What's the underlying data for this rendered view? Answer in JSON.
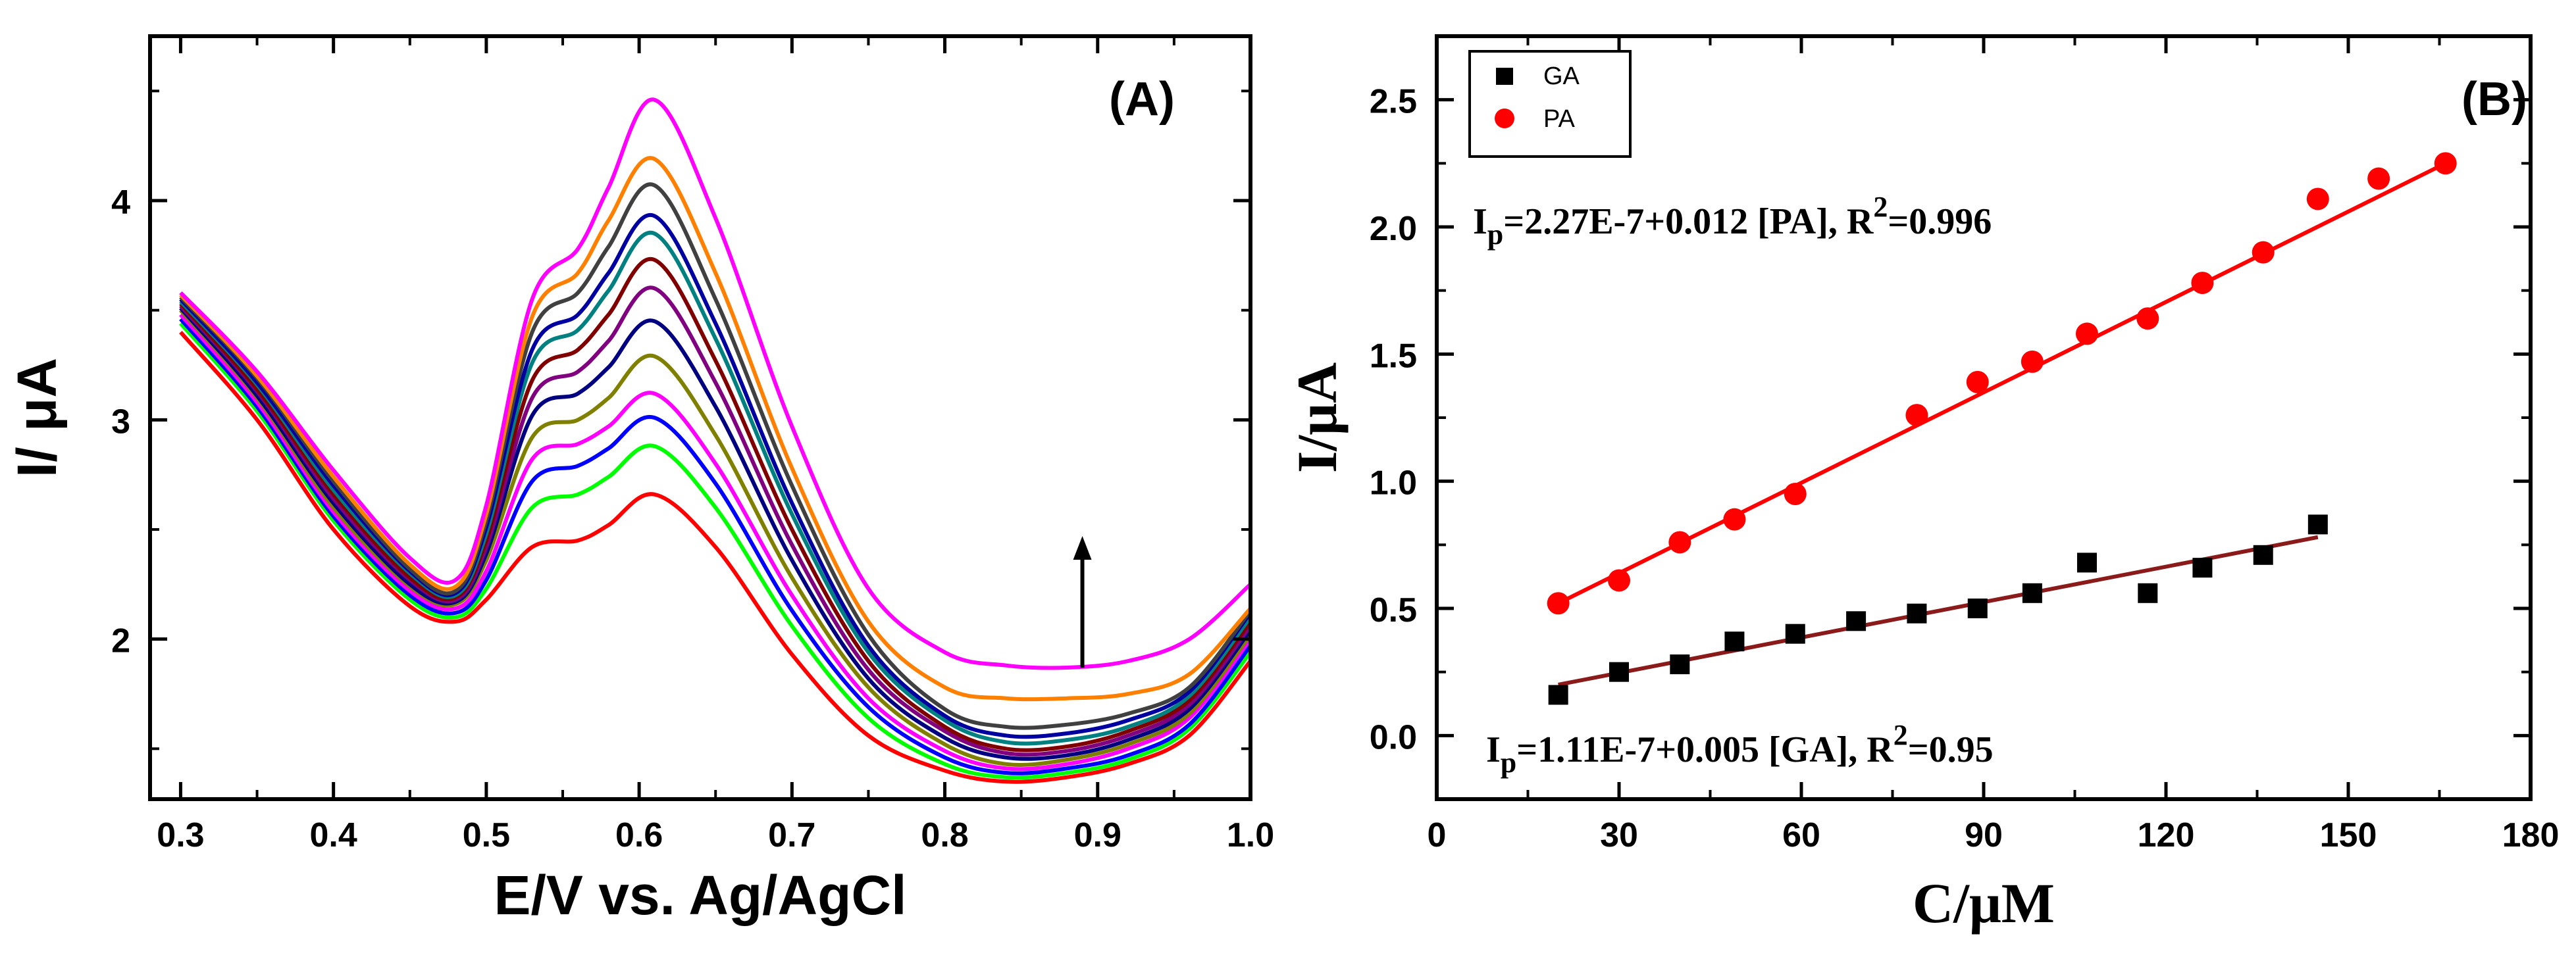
{
  "chart_data": [
    {
      "panel": "A",
      "type": "line",
      "panel_label": "(A)",
      "xlabel": "E/V vs. Ag/AgCl",
      "ylabel": "I/ μA",
      "xlim": [
        0.28,
        1.0
      ],
      "ylim": [
        1.27,
        4.75
      ],
      "xticks": [
        0.3,
        0.4,
        0.5,
        0.6,
        0.7,
        0.8,
        0.9,
        1.0
      ],
      "xtick_labels": [
        "0.3",
        "0.4",
        "0.5",
        "0.6",
        "0.7",
        "0.8",
        "0.9",
        "1.0"
      ],
      "yticks": [
        2,
        3,
        4
      ],
      "ytick_labels": [
        "2",
        "3",
        "4"
      ],
      "annotation": "upward arrow at E ≈ 0.89 V from 1.87 to 2.47 μA indicating increasing concentration",
      "series": [
        {
          "color": "#ff0000",
          "x": [
            0.3,
            0.35,
            0.4,
            0.45,
            0.48,
            0.5,
            0.53,
            0.56,
            0.58,
            0.61,
            0.65,
            0.7,
            0.75,
            0.8,
            0.84,
            0.88,
            0.92,
            0.96,
            1.0
          ],
          "y": [
            3.4,
            3.0,
            2.5,
            2.15,
            2.08,
            2.18,
            2.42,
            2.45,
            2.52,
            2.66,
            2.42,
            1.93,
            1.56,
            1.4,
            1.35,
            1.37,
            1.43,
            1.56,
            1.9
          ]
        },
        {
          "color": "#00ff00",
          "x": [
            0.3,
            0.35,
            0.4,
            0.45,
            0.48,
            0.5,
            0.53,
            0.56,
            0.58,
            0.61,
            0.65,
            0.7,
            0.75,
            0.8,
            0.84,
            0.88,
            0.92,
            0.96,
            1.0
          ],
          "y": [
            3.44,
            3.04,
            2.54,
            2.18,
            2.1,
            2.23,
            2.6,
            2.66,
            2.74,
            2.88,
            2.6,
            2.06,
            1.64,
            1.43,
            1.37,
            1.39,
            1.45,
            1.59,
            1.94
          ]
        },
        {
          "color": "#0000ff",
          "x": [
            0.3,
            0.35,
            0.4,
            0.45,
            0.48,
            0.5,
            0.53,
            0.56,
            0.58,
            0.61,
            0.65,
            0.7,
            0.75,
            0.8,
            0.84,
            0.88,
            0.92,
            0.96,
            1.0
          ],
          "y": [
            3.46,
            3.06,
            2.56,
            2.2,
            2.12,
            2.27,
            2.72,
            2.79,
            2.87,
            3.01,
            2.71,
            2.13,
            1.69,
            1.46,
            1.39,
            1.41,
            1.47,
            1.61,
            1.97
          ]
        },
        {
          "color": "#ff00ff",
          "x": [
            0.3,
            0.35,
            0.4,
            0.45,
            0.48,
            0.5,
            0.53,
            0.56,
            0.58,
            0.61,
            0.65,
            0.7,
            0.75,
            0.8,
            0.84,
            0.88,
            0.92,
            0.96,
            1.0
          ],
          "y": [
            3.48,
            3.08,
            2.58,
            2.22,
            2.14,
            2.31,
            2.82,
            2.89,
            2.97,
            3.12,
            2.8,
            2.2,
            1.73,
            1.49,
            1.41,
            1.43,
            1.5,
            1.64,
            2.0
          ]
        },
        {
          "color": "#808000",
          "x": [
            0.3,
            0.35,
            0.4,
            0.45,
            0.48,
            0.5,
            0.53,
            0.56,
            0.58,
            0.61,
            0.65,
            0.7,
            0.75,
            0.8,
            0.84,
            0.88,
            0.92,
            0.96,
            1.0
          ],
          "y": [
            3.5,
            3.1,
            2.6,
            2.24,
            2.16,
            2.36,
            2.92,
            3.0,
            3.1,
            3.29,
            2.93,
            2.28,
            1.78,
            1.52,
            1.43,
            1.45,
            1.52,
            1.66,
            2.02
          ]
        },
        {
          "color": "#000080",
          "x": [
            0.3,
            0.35,
            0.4,
            0.45,
            0.48,
            0.5,
            0.53,
            0.56,
            0.58,
            0.61,
            0.65,
            0.7,
            0.75,
            0.8,
            0.84,
            0.88,
            0.92,
            0.96,
            1.0
          ],
          "y": [
            3.51,
            3.11,
            2.62,
            2.25,
            2.17,
            2.39,
            3.02,
            3.12,
            3.24,
            3.45,
            3.06,
            2.36,
            1.82,
            1.55,
            1.46,
            1.47,
            1.54,
            1.68,
            2.04
          ]
        },
        {
          "color": "#800080",
          "x": [
            0.3,
            0.35,
            0.4,
            0.45,
            0.48,
            0.5,
            0.53,
            0.56,
            0.58,
            0.61,
            0.65,
            0.7,
            0.75,
            0.8,
            0.84,
            0.88,
            0.92,
            0.96,
            1.0
          ],
          "y": [
            3.52,
            3.13,
            2.64,
            2.27,
            2.18,
            2.42,
            3.1,
            3.22,
            3.36,
            3.6,
            3.17,
            2.43,
            1.86,
            1.58,
            1.48,
            1.49,
            1.56,
            1.7,
            2.06
          ]
        },
        {
          "color": "#800000",
          "x": [
            0.3,
            0.35,
            0.4,
            0.45,
            0.48,
            0.5,
            0.53,
            0.56,
            0.58,
            0.61,
            0.65,
            0.7,
            0.75,
            0.8,
            0.84,
            0.88,
            0.92,
            0.96,
            1.0
          ],
          "y": [
            3.53,
            3.14,
            2.66,
            2.28,
            2.19,
            2.45,
            3.18,
            3.32,
            3.48,
            3.73,
            3.27,
            2.5,
            1.9,
            1.6,
            1.5,
            1.51,
            1.58,
            1.72,
            2.08
          ]
        },
        {
          "color": "#008080",
          "x": [
            0.3,
            0.35,
            0.4,
            0.45,
            0.48,
            0.5,
            0.53,
            0.56,
            0.58,
            0.61,
            0.65,
            0.7,
            0.75,
            0.8,
            0.84,
            0.88,
            0.92,
            0.96,
            1.0
          ],
          "y": [
            3.54,
            3.16,
            2.68,
            2.3,
            2.2,
            2.48,
            3.26,
            3.41,
            3.59,
            3.85,
            3.37,
            2.57,
            1.94,
            1.63,
            1.53,
            1.54,
            1.6,
            1.74,
            2.1
          ]
        },
        {
          "color": "#0000a0",
          "x": [
            0.3,
            0.35,
            0.4,
            0.45,
            0.48,
            0.5,
            0.53,
            0.56,
            0.58,
            0.61,
            0.65,
            0.7,
            0.75,
            0.8,
            0.84,
            0.88,
            0.92,
            0.96,
            1.0
          ],
          "y": [
            3.55,
            3.17,
            2.7,
            2.31,
            2.21,
            2.51,
            3.32,
            3.48,
            3.67,
            3.93,
            3.44,
            2.62,
            1.97,
            1.65,
            1.56,
            1.57,
            1.63,
            1.76,
            2.12
          ]
        },
        {
          "color": "#404040",
          "x": [
            0.3,
            0.35,
            0.4,
            0.45,
            0.48,
            0.5,
            0.53,
            0.56,
            0.58,
            0.61,
            0.65,
            0.7,
            0.75,
            0.8,
            0.84,
            0.88,
            0.92,
            0.96,
            1.0
          ],
          "y": [
            3.56,
            3.19,
            2.72,
            2.32,
            2.22,
            2.54,
            3.4,
            3.58,
            3.79,
            4.07,
            3.55,
            2.7,
            2.02,
            1.68,
            1.6,
            1.61,
            1.66,
            1.78,
            2.13
          ]
        },
        {
          "color": "#ff8000",
          "x": [
            0.3,
            0.35,
            0.4,
            0.45,
            0.48,
            0.5,
            0.53,
            0.56,
            0.58,
            0.61,
            0.65,
            0.7,
            0.75,
            0.8,
            0.84,
            0.88,
            0.92,
            0.96,
            1.0
          ],
          "y": [
            3.57,
            3.2,
            2.74,
            2.34,
            2.24,
            2.57,
            3.47,
            3.67,
            3.91,
            4.19,
            3.67,
            2.78,
            2.08,
            1.78,
            1.73,
            1.73,
            1.75,
            1.84,
            2.14
          ]
        },
        {
          "color": "#ff00ff",
          "x": [
            0.3,
            0.35,
            0.4,
            0.45,
            0.48,
            0.5,
            0.53,
            0.56,
            0.58,
            0.61,
            0.65,
            0.7,
            0.75,
            0.8,
            0.84,
            0.88,
            0.92,
            0.96,
            1.0
          ],
          "y": [
            3.58,
            3.22,
            2.77,
            2.37,
            2.27,
            2.61,
            3.55,
            3.78,
            4.06,
            4.46,
            3.92,
            2.97,
            2.23,
            1.94,
            1.88,
            1.87,
            1.9,
            2.0,
            2.25
          ]
        }
      ]
    },
    {
      "panel": "B",
      "type": "scatter",
      "panel_label": "(B)",
      "xlabel": "C/μM",
      "ylabel": "I/μA",
      "xlim": [
        0,
        180
      ],
      "ylim": [
        -0.25,
        2.75
      ],
      "xticks": [
        0,
        30,
        60,
        90,
        120,
        150,
        180
      ],
      "xtick_labels": [
        "0",
        "30",
        "60",
        "90",
        "120",
        "150",
        "180"
      ],
      "yticks": [
        0.0,
        0.5,
        1.0,
        1.5,
        2.0,
        2.5
      ],
      "ytick_labels": [
        "0.0",
        "0.5",
        "1.0",
        "1.5",
        "2.0",
        "2.5"
      ],
      "legend": {
        "position": "top-left",
        "entries": [
          "GA",
          "PA"
        ]
      },
      "series": [
        {
          "name": "GA",
          "marker": "square",
          "color": "#000000",
          "x": [
            20,
            30,
            40,
            49,
            59,
            69,
            79,
            89,
            98,
            107,
            117,
            126,
            136,
            145
          ],
          "y": [
            0.16,
            0.25,
            0.28,
            0.37,
            0.4,
            0.45,
            0.48,
            0.5,
            0.56,
            0.68,
            0.56,
            0.66,
            0.71,
            0.83
          ],
          "fit": {
            "color": "#8b1a1a",
            "x": [
              20,
              145
            ],
            "y": [
              0.2,
              0.78
            ]
          },
          "equation": {
            "prefix": "I",
            "sub": "p",
            "mid": "=1.11E-7+0.005 [GA], R",
            "sup": "2",
            "suffix": "=0.95"
          }
        },
        {
          "name": "PA",
          "marker": "circle",
          "color": "#ff0000",
          "x": [
            20,
            30,
            40,
            49,
            59,
            79,
            89,
            98,
            107,
            117,
            126,
            136,
            145,
            155,
            166
          ],
          "y": [
            0.52,
            0.61,
            0.76,
            0.85,
            0.95,
            1.26,
            1.39,
            1.47,
            1.58,
            1.64,
            1.78,
            1.9,
            2.11,
            2.19,
            2.25
          ],
          "fit": {
            "color": "#ff0000",
            "x": [
              20,
              166
            ],
            "y": [
              0.52,
              2.25
            ]
          },
          "equation": {
            "prefix": "I",
            "sub": "p",
            "mid": "=2.27E-7+0.012 [PA], R",
            "sup": "2",
            "suffix": "=0.996"
          }
        }
      ]
    }
  ]
}
